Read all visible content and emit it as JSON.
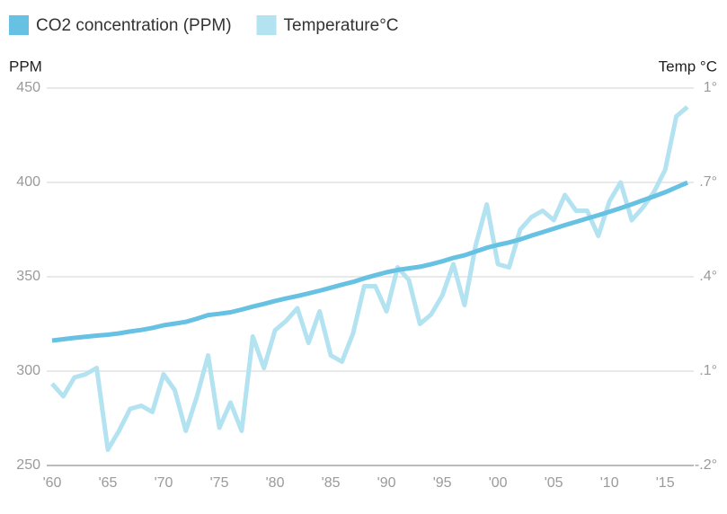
{
  "chart_data": {
    "type": "line",
    "x": [
      1960,
      1961,
      1962,
      1963,
      1964,
      1965,
      1966,
      1967,
      1968,
      1969,
      1970,
      1971,
      1972,
      1973,
      1974,
      1975,
      1976,
      1977,
      1978,
      1979,
      1980,
      1981,
      1982,
      1983,
      1984,
      1985,
      1986,
      1987,
      1988,
      1989,
      1990,
      1991,
      1992,
      1993,
      1994,
      1995,
      1996,
      1997,
      1998,
      1999,
      2000,
      2001,
      2002,
      2003,
      2004,
      2005,
      2006,
      2007,
      2008,
      2009,
      2010,
      2011,
      2012,
      2013,
      2014,
      2015,
      2016,
      2017
    ],
    "xlim": [
      1960,
      2017
    ],
    "xticks": [
      {
        "value": 1960,
        "label": "'60"
      },
      {
        "value": 1965,
        "label": "'65"
      },
      {
        "value": 1970,
        "label": "'70"
      },
      {
        "value": 1975,
        "label": "'75"
      },
      {
        "value": 1980,
        "label": "'80"
      },
      {
        "value": 1985,
        "label": "'85"
      },
      {
        "value": 1990,
        "label": "'90"
      },
      {
        "value": 1995,
        "label": "'95"
      },
      {
        "value": 2000,
        "label": "'00"
      },
      {
        "value": 2005,
        "label": "'05"
      },
      {
        "value": 2010,
        "label": "'10"
      },
      {
        "value": 2015,
        "label": "'15"
      }
    ],
    "ylabel": "PPM",
    "y2label": "Temp °C",
    "ylim": [
      250,
      450
    ],
    "yticks": [
      250,
      300,
      350,
      400,
      450
    ],
    "y2lim": [
      -0.2,
      1
    ],
    "y2ticks": [
      {
        "value": -0.2,
        "label": "-.2°"
      },
      {
        "value": 0.1,
        "label": ".1°"
      },
      {
        "value": 0.4,
        "label": ".4°"
      },
      {
        "value": 0.7,
        "label": ".7°"
      },
      {
        "value": 1,
        "label": "1°"
      }
    ],
    "grid": true,
    "legend": "top-left",
    "series": [
      {
        "name": "CO2 concentration (PPM)",
        "color": "#67c1e2",
        "values": [
          316.2,
          316.9,
          317.6,
          318.2,
          318.8,
          319.3,
          320.0,
          321.0,
          321.8,
          322.9,
          324.3,
          325.2,
          326.1,
          327.8,
          329.7,
          330.4,
          331.2,
          332.6,
          334.2,
          335.6,
          337.2,
          338.5,
          339.8,
          341.2,
          342.6,
          344.2,
          345.8,
          347.3,
          349.2,
          350.8,
          352.4,
          353.6,
          354.5,
          355.3,
          356.6,
          358.2,
          360.0,
          361.4,
          363.4,
          365.4,
          366.9,
          368.2,
          369.8,
          371.8,
          373.6,
          375.5,
          377.4,
          379.1,
          380.9,
          382.6,
          384.5,
          386.4,
          388.4,
          390.5,
          392.6,
          394.8,
          397.4,
          399.9
        ]
      },
      {
        "name": "Temperature°C",
        "color": "#b3e2f1",
        "axis": "y2",
        "values": [
          0.06,
          0.02,
          0.08,
          0.09,
          0.11,
          -0.15,
          -0.09,
          -0.02,
          -0.01,
          -0.03,
          0.09,
          0.04,
          -0.09,
          0.02,
          0.15,
          -0.08,
          0.0,
          -0.09,
          0.21,
          0.11,
          0.23,
          0.26,
          0.3,
          0.19,
          0.29,
          0.15,
          0.13,
          0.22,
          0.37,
          0.37,
          0.29,
          0.43,
          0.39,
          0.25,
          0.28,
          0.34,
          0.44,
          0.31,
          0.5,
          0.63,
          0.44,
          0.43,
          0.55,
          0.59,
          0.61,
          0.58,
          0.66,
          0.61,
          0.61,
          0.53,
          0.64,
          0.7,
          0.58,
          0.62,
          0.67,
          0.74,
          0.91,
          0.94
        ]
      }
    ]
  }
}
